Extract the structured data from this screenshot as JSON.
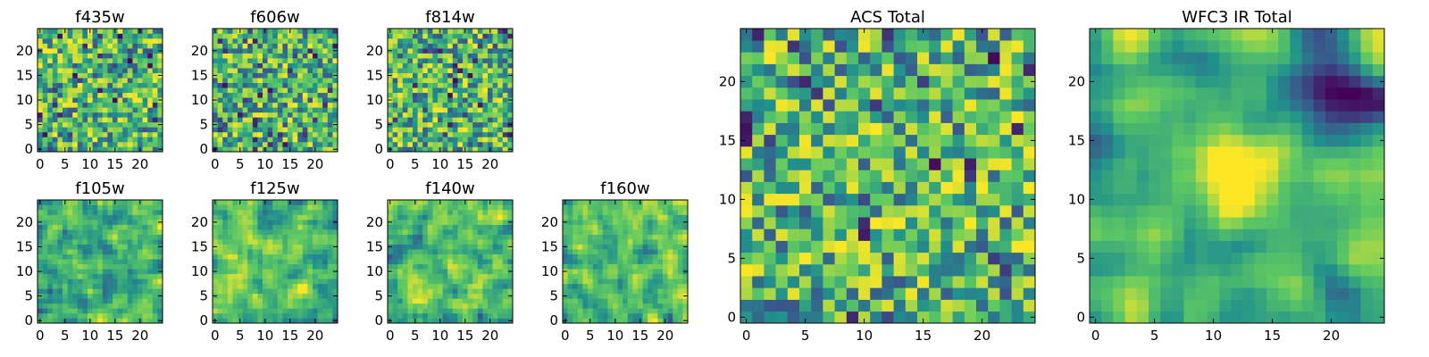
{
  "figure": {
    "background": "#ffffff"
  },
  "colormap": {
    "name": "viridis",
    "stops": [
      "#440154",
      "#3b528b",
      "#21918c",
      "#5ec962",
      "#fde725"
    ]
  },
  "chart_data": [
    {
      "type": "heatmap",
      "title": "f435w",
      "grid_size": [
        25,
        25
      ],
      "xlim": [
        -0.5,
        24.5
      ],
      "ylim": [
        -0.5,
        24.5
      ],
      "xticks": [
        0,
        5,
        10,
        15,
        20
      ],
      "yticks": [
        0,
        5,
        10,
        15,
        20
      ],
      "values_description": "noisy 25x25 pixel map, mostly green-yellow with scattered dark pixels",
      "seed": 11,
      "smooth": 0
    },
    {
      "type": "heatmap",
      "title": "f606w",
      "grid_size": [
        25,
        25
      ],
      "xlim": [
        -0.5,
        24.5
      ],
      "ylim": [
        -0.5,
        24.5
      ],
      "xticks": [
        0,
        5,
        10,
        15,
        20
      ],
      "yticks": [
        0,
        5,
        10,
        15,
        20
      ],
      "values_description": "noisy 25x25 pixel map",
      "seed": 23,
      "smooth": 0
    },
    {
      "type": "heatmap",
      "title": "f814w",
      "grid_size": [
        25,
        25
      ],
      "xlim": [
        -0.5,
        24.5
      ],
      "ylim": [
        -0.5,
        24.5
      ],
      "xticks": [
        0,
        5,
        10,
        15,
        20
      ],
      "yticks": [
        0,
        5,
        10,
        15,
        20
      ],
      "values_description": "noisy 25x25 pixel map",
      "seed": 37,
      "smooth": 0
    },
    {
      "type": "heatmap",
      "title": "f105w",
      "grid_size": [
        25,
        25
      ],
      "xlim": [
        -0.5,
        24.5
      ],
      "ylim": [
        -0.5,
        24.5
      ],
      "xticks": [
        0,
        5,
        10,
        15,
        20
      ],
      "yticks": [
        0,
        5,
        10,
        15,
        20
      ],
      "values_description": "smoother map, bright blob near center",
      "seed": 41,
      "smooth": 1
    },
    {
      "type": "heatmap",
      "title": "f125w",
      "grid_size": [
        25,
        25
      ],
      "xlim": [
        -0.5,
        24.5
      ],
      "ylim": [
        -0.5,
        24.5
      ],
      "xticks": [
        0,
        5,
        10,
        15,
        20
      ],
      "yticks": [
        0,
        5,
        10,
        15,
        20
      ],
      "values_description": "smoother map",
      "seed": 53,
      "smooth": 1
    },
    {
      "type": "heatmap",
      "title": "f140w",
      "grid_size": [
        25,
        25
      ],
      "xlim": [
        -0.5,
        24.5
      ],
      "ylim": [
        -0.5,
        24.5
      ],
      "xticks": [
        0,
        5,
        10,
        15,
        20
      ],
      "yticks": [
        0,
        5,
        10,
        15,
        20
      ],
      "values_description": "smoother map",
      "seed": 67,
      "smooth": 1
    },
    {
      "type": "heatmap",
      "title": "f160w",
      "grid_size": [
        25,
        25
      ],
      "xlim": [
        -0.5,
        24.5
      ],
      "ylim": [
        -0.5,
        24.5
      ],
      "xticks": [
        0,
        5,
        10,
        15,
        20
      ],
      "yticks": [
        0,
        5,
        10,
        15,
        20
      ],
      "values_description": "smoother map, bright blob near center",
      "seed": 79,
      "smooth": 1
    },
    {
      "type": "heatmap",
      "title": "ACS Total",
      "grid_size": [
        25,
        25
      ],
      "xlim": [
        -0.5,
        24.5
      ],
      "ylim": [
        -0.5,
        24.5
      ],
      "xticks": [
        0,
        5,
        10,
        15,
        20
      ],
      "yticks": [
        0,
        5,
        10,
        15,
        20
      ],
      "values_description": "noisy combined optical map",
      "seed": 97,
      "smooth": 0
    },
    {
      "type": "heatmap",
      "title": "WFC3 IR Total",
      "grid_size": [
        25,
        25
      ],
      "xlim": [
        -0.5,
        24.5
      ],
      "ylim": [
        -0.5,
        24.5
      ],
      "xticks": [
        0,
        5,
        10,
        15,
        20
      ],
      "yticks": [
        0,
        5,
        10,
        15,
        20
      ],
      "values_description": "smooth combined IR map, bright source near (12,12), dark patch upper right",
      "seed": 113,
      "smooth": 2,
      "bright_source": [
        12,
        12
      ],
      "dark_region": [
        20,
        19
      ]
    }
  ]
}
